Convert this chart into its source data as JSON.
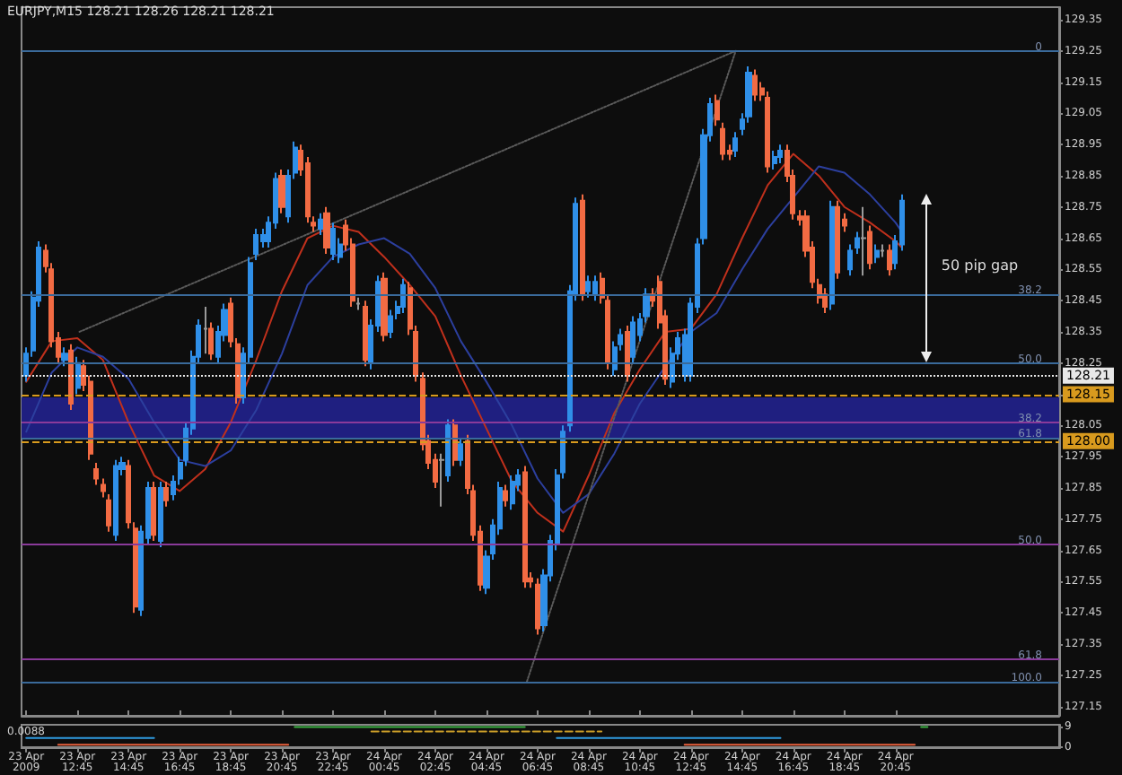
{
  "chart_data": [
    {
      "type": "candlestick",
      "title": "EURJPY,M15 128.21 128.26 128.21 128.21",
      "colors": [
        "#2f8fe8",
        "#2f8fe8",
        "#2f8fe8",
        "#f26b43",
        "#f26b43",
        "#f26b43",
        "#2f8fe8",
        "#f26b43",
        "#2f8fe8",
        "#f26b43",
        "#f26b43",
        "#f26b43",
        "#f26b43",
        "#f26b43",
        "#2f8fe8",
        "#2f8fe8",
        "#f26b43",
        "#f26b43",
        "#2f8fe8",
        "#2f8fe8",
        "#f26b43",
        "#2f8fe8",
        "#f26b43",
        "#2f8fe8",
        "#2f8fe8",
        "#2f8fe8",
        "#2f8fe8",
        "#2f8fe8",
        "#9a9a9a",
        "#f26b43",
        "#2f8fe8",
        "#2f8fe8",
        "#f26b43",
        "#f26b43",
        "#2f8fe8",
        "#2f8fe8",
        "#2f8fe8",
        "#2f8fe8",
        "#2f8fe8",
        "#2f8fe8",
        "#f26b43",
        "#2f8fe8",
        "#2f8fe8",
        "#f26b43",
        "#f26b43",
        "#f26b43",
        "#2f8fe8",
        "#f26b43",
        "#2f8fe8",
        "#2f8fe8",
        "#f26b43",
        "#f26b43",
        "#9a9a9a",
        "#f26b43",
        "#2f8fe8",
        "#2f8fe8",
        "#f26b43",
        "#2f8fe8",
        "#2f8fe8",
        "#2f8fe8",
        "#f26b43",
        "#f26b43",
        "#f26b43",
        "#f26b43",
        "#f26b43",
        "#9a9a9a",
        "#2f8fe8",
        "#f26b43",
        "#2f8fe8",
        "#f26b43",
        "#f26b43",
        "#f26b43",
        "#2f8fe8",
        "#2f8fe8",
        "#2f8fe8",
        "#f26b43",
        "#2f8fe8",
        "#2f8fe8",
        "#f26b43",
        "#f26b43",
        "#f26b43",
        "#2f8fe8",
        "#2f8fe8",
        "#2f8fe8",
        "#2f8fe8",
        "#2f8fe8",
        "#2f8fe8",
        "#f26b43",
        "#2f8fe8",
        "#2f8fe8",
        "#f26b43",
        "#f26b43",
        "#2f8fe8",
        "#2f8fe8",
        "#f26b43",
        "#2f8fe8",
        "#2f8fe8",
        "#2f8fe8",
        "#f26b43",
        "#f26b43",
        "#f26b43",
        "#2f8fe8",
        "#2f8fe8",
        "#2f8fe8",
        "#2f8fe8",
        "#2f8fe8",
        "#2f8fe8",
        "#2f8fe8",
        "#f26b43",
        "#f26b43",
        "#f26b43",
        "#2f8fe8",
        "#2f8fe8",
        "#2f8fe8",
        "#f26b43",
        "#f26b43",
        "#f26b43",
        "#2f8fe8",
        "#2f8fe8",
        "#f26b43",
        "#f26b43",
        "#f26b43",
        "#f26b43",
        "#f26b43",
        "#f26b43",
        "#f26b43",
        "#2f8fe8",
        "#f26b43",
        "#f26b43",
        "#2f8fe8",
        "#2f8fe8",
        "#9a9a9a",
        "#f26b43",
        "#2f8fe8",
        "#9a9a9a",
        "#f26b43",
        "#2f8fe8",
        "#2f8fe8"
      ],
      "x": [
        "2009-04-23T10:45",
        "2009-04-23T11:00",
        "2009-04-23T11:15",
        "2009-04-23T11:30",
        "2009-04-23T11:45",
        "2009-04-23T12:00",
        "2009-04-23T12:15",
        "2009-04-23T12:30",
        "2009-04-23T12:45",
        "2009-04-23T13:00",
        "2009-04-23T13:15",
        "2009-04-23T13:30",
        "2009-04-23T13:45",
        "2009-04-23T14:00",
        "2009-04-23T14:15",
        "2009-04-23T14:30",
        "2009-04-23T14:45",
        "2009-04-23T15:00",
        "2009-04-23T15:15",
        "2009-04-23T15:30",
        "2009-04-23T15:45",
        "2009-04-23T16:00",
        "2009-04-23T16:15",
        "2009-04-23T16:30",
        "2009-04-23T16:45",
        "2009-04-23T17:00",
        "2009-04-23T17:15",
        "2009-04-23T17:30",
        "2009-04-23T17:45",
        "2009-04-23T18:00",
        "2009-04-23T18:15",
        "2009-04-23T18:30",
        "2009-04-23T18:45",
        "2009-04-23T19:00",
        "2009-04-23T19:15",
        "2009-04-23T19:30",
        "2009-04-23T19:45",
        "2009-04-23T20:00",
        "2009-04-23T20:15",
        "2009-04-23T20:30",
        "2009-04-23T20:45",
        "2009-04-23T21:00",
        "2009-04-23T21:15",
        "2009-04-23T21:30",
        "2009-04-23T21:45",
        "2009-04-23T22:00",
        "2009-04-23T22:15",
        "2009-04-23T22:30",
        "2009-04-23T22:45",
        "2009-04-23T23:00",
        "2009-04-23T23:15",
        "2009-04-23T23:30",
        "2009-04-23T23:45",
        "2009-04-24T00:00",
        "2009-04-24T00:15",
        "2009-04-24T00:30",
        "2009-04-24T00:45",
        "2009-04-24T01:00",
        "2009-04-24T01:15",
        "2009-04-24T01:30",
        "2009-04-24T01:45",
        "2009-04-24T02:00",
        "2009-04-24T02:15",
        "2009-04-24T02:30",
        "2009-04-24T02:45",
        "2009-04-24T03:00",
        "2009-04-24T03:15",
        "2009-04-24T03:30",
        "2009-04-24T03:45",
        "2009-04-24T04:00",
        "2009-04-24T04:15",
        "2009-04-24T04:30",
        "2009-04-24T04:45",
        "2009-04-24T05:00",
        "2009-04-24T05:15",
        "2009-04-24T05:30",
        "2009-04-24T05:45",
        "2009-04-24T06:00",
        "2009-04-24T06:15",
        "2009-04-24T06:30",
        "2009-04-24T06:45",
        "2009-04-24T07:00",
        "2009-04-24T07:15",
        "2009-04-24T07:30",
        "2009-04-24T07:45",
        "2009-04-24T08:00",
        "2009-04-24T08:15",
        "2009-04-24T08:30",
        "2009-04-24T08:45",
        "2009-04-24T09:00",
        "2009-04-24T09:15",
        "2009-04-24T09:30",
        "2009-04-24T09:45",
        "2009-04-24T10:00",
        "2009-04-24T10:15",
        "2009-04-24T10:30",
        "2009-04-24T10:45",
        "2009-04-24T11:00",
        "2009-04-24T11:15",
        "2009-04-24T11:30",
        "2009-04-24T11:45",
        "2009-04-24T12:00",
        "2009-04-24T12:15",
        "2009-04-24T12:30",
        "2009-04-24T12:45",
        "2009-04-24T13:00",
        "2009-04-24T13:15",
        "2009-04-24T13:30",
        "2009-04-24T13:45",
        "2009-04-24T14:00",
        "2009-04-24T14:15",
        "2009-04-24T14:30",
        "2009-04-24T14:45",
        "2009-04-24T15:00",
        "2009-04-24T15:15",
        "2009-04-24T15:30",
        "2009-04-24T15:45",
        "2009-04-24T16:00",
        "2009-04-24T16:15",
        "2009-04-24T16:30",
        "2009-04-24T16:45",
        "2009-04-24T17:00",
        "2009-04-24T17:15",
        "2009-04-24T17:30",
        "2009-04-24T17:45",
        "2009-04-24T18:00",
        "2009-04-24T18:15",
        "2009-04-24T18:30",
        "2009-04-24T18:45",
        "2009-04-24T19:00",
        "2009-04-24T19:15",
        "2009-04-24T19:30",
        "2009-04-24T19:45",
        "2009-04-24T20:00",
        "2009-04-24T20:15",
        "2009-04-24T20:30",
        "2009-04-24T20:45",
        "2009-04-24T21:00"
      ],
      "ohlc": [
        [
          128.21,
          128.3,
          128.19,
          128.28
        ],
        [
          128.29,
          128.48,
          128.27,
          128.46
        ],
        [
          128.45,
          128.64,
          128.43,
          128.62
        ],
        [
          128.61,
          128.63,
          128.54,
          128.56
        ],
        [
          128.55,
          128.57,
          128.3,
          128.32
        ],
        [
          128.33,
          128.35,
          128.25,
          128.27
        ],
        [
          128.26,
          128.3,
          128.24,
          128.28
        ],
        [
          128.29,
          128.31,
          128.1,
          128.12
        ],
        [
          128.17,
          128.27,
          128.15,
          128.25
        ],
        [
          128.24,
          128.26,
          128.16,
          128.18
        ],
        [
          128.19,
          128.21,
          127.94,
          127.96
        ],
        [
          127.91,
          127.93,
          127.86,
          127.88
        ],
        [
          127.86,
          127.88,
          127.82,
          127.84
        ],
        [
          127.81,
          127.83,
          127.71,
          127.73
        ],
        [
          127.7,
          127.94,
          127.68,
          127.92
        ],
        [
          127.91,
          127.95,
          127.89,
          127.93
        ],
        [
          127.92,
          127.94,
          127.72,
          127.74
        ],
        [
          127.72,
          127.74,
          127.45,
          127.47
        ],
        [
          127.46,
          127.73,
          127.44,
          127.71
        ],
        [
          127.69,
          127.87,
          127.67,
          127.85
        ],
        [
          127.85,
          127.87,
          127.68,
          127.7
        ],
        [
          127.68,
          127.87,
          127.66,
          127.85
        ],
        [
          127.85,
          127.87,
          127.79,
          127.81
        ],
        [
          127.83,
          127.89,
          127.81,
          127.87
        ],
        [
          127.88,
          127.95,
          127.86,
          127.93
        ],
        [
          127.94,
          128.06,
          127.92,
          128.04
        ],
        [
          128.04,
          128.29,
          128.02,
          128.27
        ],
        [
          128.27,
          128.39,
          128.25,
          128.37
        ],
        [
          128.36,
          128.43,
          128.28,
          128.36
        ],
        [
          128.36,
          128.38,
          128.26,
          128.28
        ],
        [
          128.27,
          128.37,
          128.25,
          128.35
        ],
        [
          128.34,
          128.44,
          128.32,
          128.42
        ],
        [
          128.44,
          128.46,
          128.3,
          128.32
        ],
        [
          128.31,
          128.33,
          128.12,
          128.14
        ],
        [
          128.14,
          128.3,
          128.12,
          128.28
        ],
        [
          128.27,
          128.59,
          128.25,
          128.57
        ],
        [
          128.6,
          128.68,
          128.58,
          128.66
        ],
        [
          128.64,
          128.68,
          128.62,
          128.66
        ],
        [
          128.64,
          128.72,
          128.62,
          128.7
        ],
        [
          128.7,
          128.86,
          128.68,
          128.84
        ],
        [
          128.85,
          128.87,
          128.73,
          128.75
        ],
        [
          128.72,
          128.87,
          128.7,
          128.85
        ],
        [
          128.86,
          128.96,
          128.84,
          128.94
        ],
        [
          128.93,
          128.95,
          128.85,
          128.87
        ],
        [
          128.89,
          128.91,
          128.7,
          128.72
        ],
        [
          128.7,
          128.72,
          128.67,
          128.69
        ],
        [
          128.68,
          128.73,
          128.66,
          128.71
        ],
        [
          128.73,
          128.75,
          128.6,
          128.62
        ],
        [
          128.6,
          128.7,
          128.58,
          128.68
        ],
        [
          128.59,
          128.65,
          128.57,
          128.63
        ],
        [
          128.69,
          128.71,
          128.61,
          128.63
        ],
        [
          128.63,
          128.65,
          128.43,
          128.45
        ],
        [
          128.44,
          128.46,
          128.42,
          128.44
        ],
        [
          128.43,
          128.45,
          128.24,
          128.26
        ],
        [
          128.25,
          128.39,
          128.23,
          128.37
        ],
        [
          128.37,
          128.53,
          128.35,
          128.51
        ],
        [
          128.52,
          128.54,
          128.32,
          128.34
        ],
        [
          128.35,
          128.42,
          128.33,
          128.4
        ],
        [
          128.41,
          128.45,
          128.39,
          128.43
        ],
        [
          128.43,
          128.52,
          128.41,
          128.5
        ],
        [
          128.49,
          128.51,
          128.34,
          128.36
        ],
        [
          128.35,
          128.37,
          128.19,
          128.21
        ],
        [
          128.2,
          128.22,
          127.97,
          127.99
        ],
        [
          128.0,
          128.02,
          127.91,
          127.93
        ],
        [
          127.94,
          127.96,
          127.85,
          127.87
        ],
        [
          127.94,
          127.96,
          127.79,
          127.94
        ],
        [
          127.89,
          128.07,
          127.87,
          128.05
        ],
        [
          128.05,
          128.07,
          127.92,
          127.94
        ],
        [
          127.94,
          128.01,
          127.92,
          127.99
        ],
        [
          128.0,
          128.02,
          127.83,
          127.85
        ],
        [
          127.84,
          127.86,
          127.68,
          127.7
        ],
        [
          127.71,
          127.73,
          127.52,
          127.54
        ],
        [
          127.53,
          127.65,
          127.51,
          127.63
        ],
        [
          127.64,
          127.75,
          127.62,
          127.73
        ],
        [
          127.72,
          127.87,
          127.7,
          127.85
        ],
        [
          127.84,
          127.86,
          127.79,
          127.81
        ],
        [
          127.8,
          127.89,
          127.78,
          127.87
        ],
        [
          127.86,
          127.91,
          127.84,
          127.89
        ],
        [
          127.9,
          127.92,
          127.53,
          127.55
        ],
        [
          127.56,
          127.58,
          127.53,
          127.55
        ],
        [
          127.54,
          127.56,
          127.38,
          127.4
        ],
        [
          127.41,
          127.59,
          127.39,
          127.57
        ],
        [
          127.57,
          127.7,
          127.55,
          127.68
        ],
        [
          127.67,
          127.91,
          127.65,
          127.89
        ],
        [
          127.9,
          128.05,
          127.88,
          128.03
        ],
        [
          128.05,
          128.5,
          128.03,
          128.48
        ],
        [
          128.47,
          128.78,
          128.45,
          128.76
        ],
        [
          128.77,
          128.79,
          128.45,
          128.47
        ],
        [
          128.48,
          128.53,
          128.46,
          128.51
        ],
        [
          128.47,
          128.53,
          128.45,
          128.51
        ],
        [
          128.52,
          128.54,
          128.44,
          128.46
        ],
        [
          128.45,
          128.47,
          128.23,
          128.25
        ],
        [
          128.23,
          128.32,
          128.21,
          128.3
        ],
        [
          128.31,
          128.36,
          128.29,
          128.34
        ],
        [
          128.35,
          128.37,
          128.19,
          128.21
        ],
        [
          128.27,
          128.4,
          128.25,
          128.38
        ],
        [
          128.34,
          128.41,
          128.32,
          128.39
        ],
        [
          128.4,
          128.49,
          128.38,
          128.47
        ],
        [
          128.47,
          128.49,
          128.43,
          128.45
        ],
        [
          128.51,
          128.53,
          128.36,
          128.38
        ],
        [
          128.4,
          128.42,
          128.18,
          128.2
        ],
        [
          128.19,
          128.3,
          128.17,
          128.28
        ],
        [
          128.28,
          128.35,
          128.26,
          128.33
        ],
        [
          128.21,
          128.36,
          128.19,
          128.34
        ],
        [
          128.21,
          128.46,
          128.19,
          128.44
        ],
        [
          128.43,
          128.65,
          128.41,
          128.63
        ],
        [
          128.65,
          129.0,
          128.63,
          128.98
        ],
        [
          128.98,
          129.1,
          128.96,
          129.08
        ],
        [
          129.09,
          129.11,
          129.01,
          129.03
        ],
        [
          129.0,
          129.02,
          128.9,
          128.92
        ],
        [
          128.93,
          128.95,
          128.9,
          128.92
        ],
        [
          128.93,
          128.99,
          128.91,
          128.97
        ],
        [
          129.0,
          129.05,
          128.98,
          129.03
        ],
        [
          129.04,
          129.2,
          129.02,
          129.18
        ],
        [
          129.17,
          129.19,
          129.09,
          129.11
        ],
        [
          129.13,
          129.15,
          129.09,
          129.11
        ],
        [
          129.1,
          129.12,
          128.86,
          128.88
        ],
        [
          128.89,
          128.93,
          128.87,
          128.91
        ],
        [
          128.91,
          128.95,
          128.89,
          128.93
        ],
        [
          128.93,
          128.95,
          128.83,
          128.85
        ],
        [
          128.85,
          128.87,
          128.71,
          128.73
        ],
        [
          128.72,
          128.74,
          128.69,
          128.71
        ],
        [
          128.72,
          128.74,
          128.59,
          128.61
        ],
        [
          128.62,
          128.64,
          128.49,
          128.51
        ],
        [
          128.5,
          128.52,
          128.44,
          128.46
        ],
        [
          128.47,
          128.49,
          128.41,
          128.43
        ],
        [
          128.44,
          128.77,
          128.42,
          128.75
        ],
        [
          128.75,
          128.77,
          128.52,
          128.54
        ],
        [
          128.71,
          128.73,
          128.67,
          128.69
        ],
        [
          128.55,
          128.63,
          128.53,
          128.61
        ],
        [
          128.62,
          128.67,
          128.6,
          128.65
        ],
        [
          128.65,
          128.75,
          128.53,
          128.65
        ],
        [
          128.67,
          128.69,
          128.55,
          128.57
        ],
        [
          128.59,
          128.63,
          128.57,
          128.61
        ],
        [
          128.61,
          128.63,
          128.59,
          128.61
        ],
        [
          128.61,
          128.63,
          128.53,
          128.55
        ],
        [
          128.57,
          128.66,
          128.55,
          128.64
        ],
        [
          128.63,
          128.79,
          128.61,
          128.77
        ]
      ],
      "series": [
        {
          "type": "line",
          "color": "#c0301c",
          "x": [
            "2009-04-23T10:45",
            "2009-04-23T11:45",
            "2009-04-23T12:45",
            "2009-04-23T13:45",
            "2009-04-23T14:45",
            "2009-04-23T15:45",
            "2009-04-23T16:45",
            "2009-04-23T17:45",
            "2009-04-23T18:45",
            "2009-04-23T19:45",
            "2009-04-23T20:45",
            "2009-04-23T21:45",
            "2009-04-23T22:45",
            "2009-04-23T23:45",
            "2009-04-24T00:45",
            "2009-04-24T01:45",
            "2009-04-24T02:45",
            "2009-04-24T03:45",
            "2009-04-24T04:45",
            "2009-04-24T05:45",
            "2009-04-24T06:45",
            "2009-04-24T07:45",
            "2009-04-24T08:45",
            "2009-04-24T09:45",
            "2009-04-24T10:45",
            "2009-04-24T11:45",
            "2009-04-24T12:45",
            "2009-04-24T13:45",
            "2009-04-24T14:45",
            "2009-04-24T15:45",
            "2009-04-24T16:45",
            "2009-04-24T17:45",
            "2009-04-24T18:45",
            "2009-04-24T19:45",
            "2009-04-24T20:45",
            "2009-04-24T21:00"
          ],
          "values": [
            128.19,
            128.32,
            128.33,
            128.26,
            128.06,
            127.89,
            127.84,
            127.91,
            128.06,
            128.26,
            128.48,
            128.65,
            128.69,
            128.67,
            128.59,
            128.5,
            128.4,
            128.21,
            128.04,
            127.87,
            127.77,
            127.71,
            127.89,
            128.09,
            128.23,
            128.35,
            128.36,
            128.47,
            128.65,
            128.82,
            128.92,
            128.85,
            128.75,
            128.7,
            128.64,
            128.62
          ]
        },
        {
          "type": "line",
          "color": "#2c3f9e",
          "x": [
            "2009-04-23T10:45",
            "2009-04-23T11:45",
            "2009-04-23T12:45",
            "2009-04-23T13:45",
            "2009-04-23T14:45",
            "2009-04-23T15:45",
            "2009-04-23T16:45",
            "2009-04-23T17:45",
            "2009-04-23T18:45",
            "2009-04-23T19:45",
            "2009-04-23T20:45",
            "2009-04-23T21:45",
            "2009-04-23T22:45",
            "2009-04-23T23:45",
            "2009-04-24T00:45",
            "2009-04-24T01:45",
            "2009-04-24T02:45",
            "2009-04-24T03:45",
            "2009-04-24T04:45",
            "2009-04-24T05:45",
            "2009-04-24T06:45",
            "2009-04-24T07:45",
            "2009-04-24T08:45",
            "2009-04-24T09:45",
            "2009-04-24T10:45",
            "2009-04-24T11:45",
            "2009-04-24T12:45",
            "2009-04-24T13:45",
            "2009-04-24T14:45",
            "2009-04-24T15:45",
            "2009-04-24T16:45",
            "2009-04-24T17:45",
            "2009-04-24T18:45",
            "2009-04-24T19:45",
            "2009-04-24T20:45",
            "2009-04-24T21:00"
          ],
          "values": [
            128.03,
            128.22,
            128.3,
            128.27,
            128.2,
            128.06,
            127.94,
            127.92,
            127.97,
            128.1,
            128.28,
            128.5,
            128.59,
            128.63,
            128.65,
            128.6,
            128.49,
            128.32,
            128.19,
            128.05,
            127.88,
            127.77,
            127.83,
            127.96,
            128.12,
            128.24,
            128.35,
            128.41,
            128.55,
            128.68,
            128.78,
            128.88,
            128.86,
            128.79,
            128.7,
            128.67
          ]
        },
        {
          "type": "line",
          "color": "#5a5a5a",
          "line_style": "dotted",
          "x": [
            "2009-04-23T12:50",
            "2009-04-24T14:30"
          ],
          "values": [
            128.35,
            129.25
          ]
        },
        {
          "type": "line",
          "color": "#5a5a5a",
          "line_style": "dotted",
          "x": [
            "2009-04-24T06:20",
            "2009-04-24T14:30"
          ],
          "values": [
            127.23,
            129.25
          ]
        }
      ],
      "marker": "none",
      "xlim": [
        "2009-04-23T10:34",
        "2009-04-25T03:09"
      ],
      "xticks": [
        {
          "value": "2009-04-23T10:45",
          "label": null
        },
        {
          "value": "2009-04-23T12:45",
          "label": null
        },
        {
          "value": "2009-04-23T14:45",
          "label": null
        },
        {
          "value": "2009-04-23T16:45",
          "label": null
        },
        {
          "value": "2009-04-23T18:45",
          "label": null
        },
        {
          "value": "2009-04-23T20:45",
          "label": null
        },
        {
          "value": "2009-04-23T22:45",
          "label": null
        },
        {
          "value": "2009-04-24T00:45",
          "label": null
        },
        {
          "value": "2009-04-24T02:45",
          "label": null
        },
        {
          "value": "2009-04-24T04:45",
          "label": null
        },
        {
          "value": "2009-04-24T06:45",
          "label": null
        },
        {
          "value": "2009-04-24T08:45",
          "label": null
        },
        {
          "value": "2009-04-24T10:45",
          "label": null
        },
        {
          "value": "2009-04-24T12:45",
          "label": null
        },
        {
          "value": "2009-04-24T14:45",
          "label": null
        },
        {
          "value": "2009-04-24T16:45",
          "label": null
        },
        {
          "value": "2009-04-24T18:45",
          "label": null
        },
        {
          "value": "2009-04-24T20:45",
          "label": null
        }
      ],
      "ylim": [
        127.12,
        129.39
      ],
      "yticks": [
        127.15,
        127.25,
        127.35,
        127.45,
        127.55,
        127.65,
        127.75,
        127.85,
        127.95,
        128.05,
        {
          "value": 128.15,
          "label": null
        },
        128.25,
        128.35,
        128.45,
        128.55,
        128.65,
        128.75,
        128.85,
        128.95,
        129.05,
        129.15,
        129.25,
        129.35
      ],
      "tick_labels": "y",
      "ref_lines": [
        {
          "axis": "y",
          "value": 129.25,
          "color": "#3a6a9a"
        },
        {
          "axis": "y",
          "value": 128.47,
          "color": "#3a6a9a"
        },
        {
          "axis": "y",
          "value": 128.25,
          "color": "#3a6a9a"
        },
        {
          "axis": "y",
          "value": 128.01,
          "color": "#3a6a9a"
        },
        {
          "axis": "y",
          "value": 127.23,
          "color": "#3a6a9a"
        },
        {
          "axis": "y",
          "value": 128.06,
          "color": "#8a3a9a"
        },
        {
          "axis": "y",
          "value": 127.67,
          "color": "#8a3a9a"
        },
        {
          "axis": "y",
          "value": 127.3,
          "color": "#8a3a9a"
        },
        {
          "axis": "y",
          "value": 128.15,
          "label": "128.15",
          "color": "#d89a1e",
          "line_style": "dashed"
        },
        {
          "axis": "y",
          "value": 128.0,
          "label": "128.00",
          "color": "#d89a1e",
          "line_style": "dashed"
        },
        {
          "axis": "y",
          "value": 128.21,
          "label": "128.21",
          "color": "#e8e8e8",
          "line_style": "dotted"
        }
      ],
      "bands": [
        {
          "axis": "y",
          "from": 128.01,
          "to": 128.14,
          "color": "#1f1f80"
        }
      ],
      "annotations": [
        "50 pip gap",
        {
          "text": "0",
          "x": "2009-04-25T02:50",
          "y": 129.25
        },
        {
          "text": "38.2",
          "x": "2009-04-25T02:50",
          "y": 128.47
        },
        {
          "text": "50.0",
          "x": "2009-04-25T02:50",
          "y": 128.25
        },
        {
          "text": "61.8",
          "x": "2009-04-25T02:50",
          "y": 128.01
        },
        {
          "text": "100.0",
          "x": "2009-04-25T02:50",
          "y": 127.23
        },
        {
          "text": "38.2",
          "x": "2009-04-25T02:50",
          "y": 128.06
        },
        {
          "text": "50.0",
          "x": "2009-04-25T02:50",
          "y": 127.67
        },
        {
          "text": "61.8",
          "x": "2009-04-25T02:50",
          "y": 127.3
        }
      ]
    },
    {
      "type": "line",
      "marker": "none",
      "series": [
        {
          "color": "#2f9be0",
          "x": [
            "2009-04-23T10:45",
            "2009-04-23T15:45"
          ],
          "values": [
            4,
            4
          ]
        },
        {
          "color": "#e8603c",
          "x": [
            "2009-04-23T12:00",
            "2009-04-23T21:00"
          ],
          "values": [
            1,
            1
          ]
        },
        {
          "color": "#3cb043",
          "x": [
            "2009-04-23T21:15",
            "2009-04-24T06:15"
          ],
          "values": [
            9,
            9
          ]
        },
        {
          "color": "#c89b28",
          "line_style": "dashed",
          "x": [
            "2009-04-24T00:15",
            "2009-04-24T09:15"
          ],
          "values": [
            7,
            7
          ]
        },
        {
          "color": "#2f9be0",
          "x": [
            "2009-04-24T07:30",
            "2009-04-24T16:15"
          ],
          "values": [
            4,
            4
          ]
        },
        {
          "color": "#e8603c",
          "x": [
            "2009-04-24T12:30",
            "2009-04-24T21:30"
          ],
          "values": [
            1,
            1
          ]
        },
        {
          "color": "#3cb043",
          "x": [
            "2009-04-24T21:45",
            "2009-04-24T22:00"
          ],
          "values": [
            9,
            9
          ]
        }
      ],
      "xlim": [
        "2009-04-23T10:34",
        "2009-04-25T03:09"
      ],
      "xticks": [
        {
          "value": "2009-04-23T10:45",
          "label": "23 Apr 2009"
        },
        {
          "value": "2009-04-23T12:45",
          "label": "23 Apr 12:45"
        },
        {
          "value": "2009-04-23T14:45",
          "label": "23 Apr 14:45"
        },
        {
          "value": "2009-04-23T16:45",
          "label": "23 Apr 16:45"
        },
        {
          "value": "2009-04-23T18:45",
          "label": "23 Apr 18:45"
        },
        {
          "value": "2009-04-23T20:45",
          "label": "23 Apr 20:45"
        },
        {
          "value": "2009-04-23T22:45",
          "label": "23 Apr 22:45"
        },
        {
          "value": "2009-04-24T00:45",
          "label": "24 Apr 00:45"
        },
        {
          "value": "2009-04-24T02:45",
          "label": "24 Apr 02:45"
        },
        {
          "value": "2009-04-24T04:45",
          "label": "24 Apr 04:45"
        },
        {
          "value": "2009-04-24T06:45",
          "label": "24 Apr 06:45"
        },
        {
          "value": "2009-04-24T08:45",
          "label": "24 Apr 08:45"
        },
        {
          "value": "2009-04-24T10:45",
          "label": "24 Apr 10:45"
        },
        {
          "value": "2009-04-24T12:45",
          "label": "24 Apr 12:45"
        },
        {
          "value": "2009-04-24T14:45",
          "label": "24 Apr 14:45"
        },
        {
          "value": "2009-04-24T16:45",
          "label": "24 Apr 16:45"
        },
        {
          "value": "2009-04-24T18:45",
          "label": "24 Apr 18:45"
        },
        {
          "value": "2009-04-24T20:45",
          "label": "24 Apr 20:45"
        }
      ],
      "ylim": [
        -0.5,
        10
      ],
      "yticks": [
        0,
        9
      ],
      "annotations": [
        "0.0088"
      ]
    }
  ]
}
